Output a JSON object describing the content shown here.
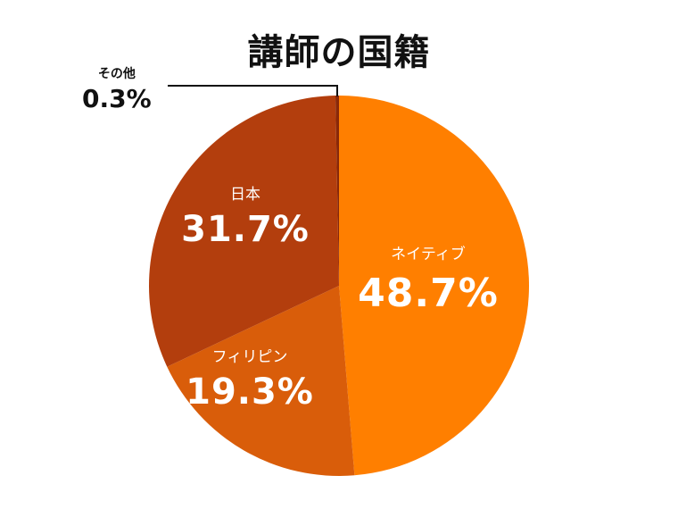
{
  "chart_data": {
    "type": "pie",
    "title": "講師の国籍",
    "categories": [
      "ネイティブ",
      "フィリピン",
      "日本",
      "その他"
    ],
    "values": [
      48.7,
      19.3,
      31.7,
      0.3
    ],
    "value_labels": [
      "48.7%",
      "19.3%",
      "31.7%",
      "0.3%"
    ],
    "colors": [
      "#FF7F00",
      "#D95D0A",
      "#B33E0D",
      "#8A2808"
    ],
    "start_angle": "top (12 o'clock)",
    "direction": "clockwise",
    "legend": "none (labels inside slices; その他 via leader line)"
  },
  "labels": {
    "native": {
      "name": "ネイティブ",
      "value": "48.7%"
    },
    "philippines": {
      "name": "フィリピン",
      "value": "19.3%"
    },
    "japan": {
      "name": "日本",
      "value": "31.7%"
    },
    "other": {
      "name": "その他",
      "value": "0.3%"
    }
  }
}
